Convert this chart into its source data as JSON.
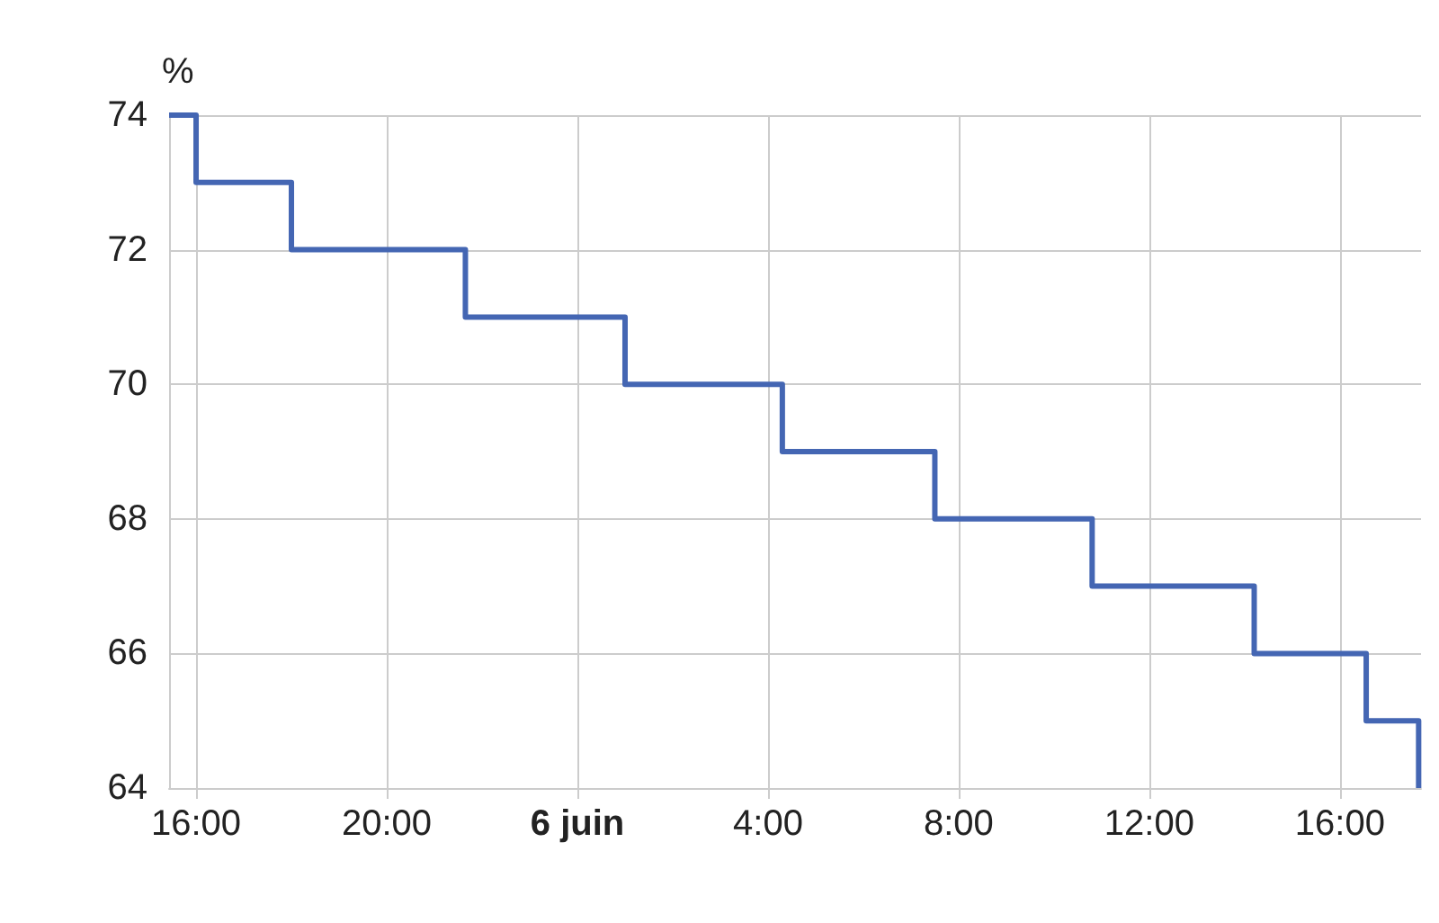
{
  "chart_data": {
    "type": "step",
    "ylabel": "%",
    "x": [
      "--06-05T15:26",
      "--06-05T16:00",
      "--06-05T18:00",
      "--06-05T21:39",
      "--06-06T01:00",
      "--06-06T04:18",
      "--06-06T07:30",
      "--06-06T10:48",
      "--06-06T14:12",
      "--06-06T16:33",
      "--06-06T17:39"
    ],
    "series": [
      {
        "color": "#4466b3",
        "values": [
          74,
          73,
          72,
          71,
          70,
          69,
          68,
          67,
          66,
          65,
          64
        ]
      }
    ],
    "xlim": [
      "--06-05T15:26",
      "--06-06T17:42"
    ],
    "xticks": [
      {
        "value": "--06-05T16:00",
        "label": "16:00"
      },
      {
        "value": "--06-05T20:00",
        "label": "20:00"
      },
      {
        "value": "--06-06T00:00",
        "label": "6 juin"
      },
      {
        "value": "--06-06T04:00",
        "label": "4:00"
      },
      {
        "value": "--06-06T08:00",
        "label": "8:00"
      },
      {
        "value": "--06-06T12:00",
        "label": "12:00"
      },
      {
        "value": "--06-06T16:00",
        "label": "16:00"
      }
    ],
    "ylim": [
      64,
      74
    ],
    "yticks": [
      64,
      66,
      68,
      70,
      72,
      74
    ],
    "grid": true
  }
}
